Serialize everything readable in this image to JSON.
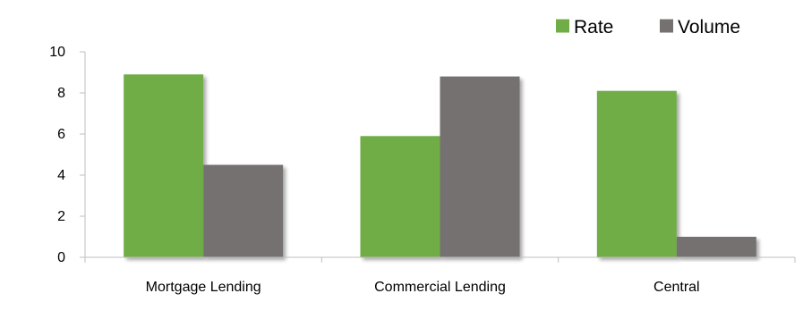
{
  "chart_data": {
    "type": "bar",
    "categories": [
      "Mortgage Lending",
      "Commercial Lending",
      "Central"
    ],
    "series": [
      {
        "name": "Rate",
        "values": [
          8.9,
          5.9,
          8.1
        ],
        "color": "#70ad47"
      },
      {
        "name": "Volume",
        "values": [
          4.5,
          8.8,
          1.0
        ],
        "color": "#767171"
      }
    ],
    "ylim": [
      0,
      10
    ],
    "yticks": [
      0,
      2,
      4,
      6,
      8,
      10
    ],
    "xlabel": "",
    "ylabel": "",
    "title": "",
    "legend_position": "top-right",
    "grid": false,
    "axis_color": "#bfbfbf"
  }
}
